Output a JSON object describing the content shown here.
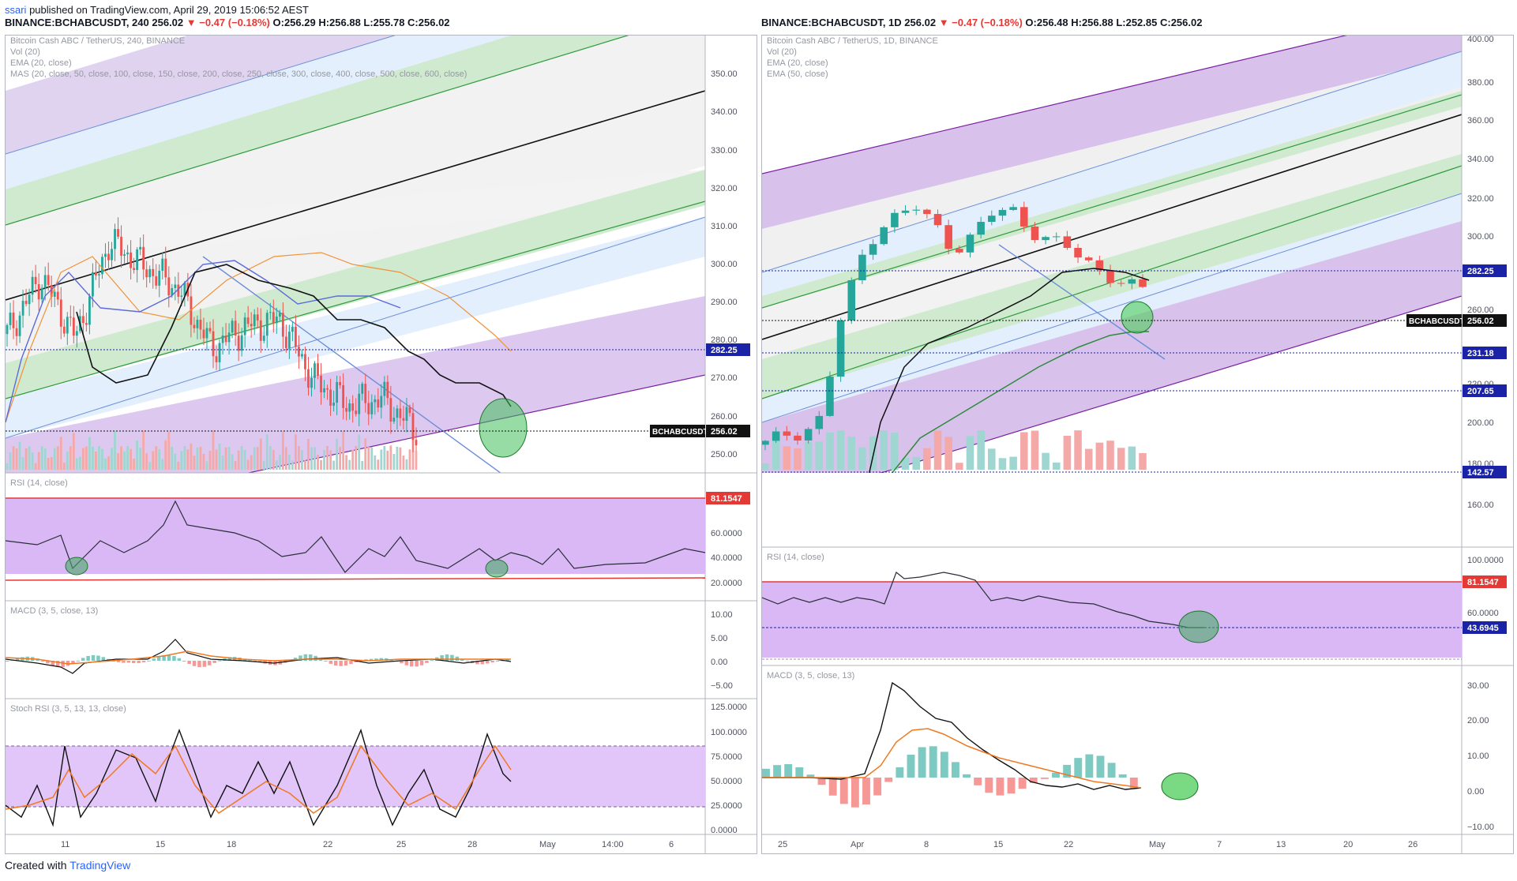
{
  "publish": {
    "user": "ssari",
    "text": "published on TradingView.com, April 29, 2019 15:06:52 AEST"
  },
  "left": {
    "header": {
      "symbol": "BINANCE:BCHABCUSDT, 240",
      "price": "256.02",
      "change": "▼ −0.47 (−0.18%)",
      "ohlc": "O:256.29 H:256.88 L:255.78 C:256.02"
    },
    "legend": {
      "line1": "Bitcoin Cash ABC / TetherUS, 240, BINANCE",
      "line2": "Vol (20)",
      "line3": "EMA (20, close)",
      "line4": "MAS (20, close, 50, close, 100, close, 150, close, 200, close, 250, close, 300, close, 400, close, 500, close, 600, close)"
    },
    "price_axis": [
      "350.00",
      "340.00",
      "330.00",
      "320.00",
      "310.00",
      "300.00",
      "290.00",
      "280.00",
      "270.00",
      "260.00",
      "250.00"
    ],
    "price_tags": {
      "level": "282.25",
      "symbol": "BCHABCUSDT",
      "last": "256.02"
    },
    "rsi": {
      "label": "RSI (14, close)",
      "tag": "81.1547",
      "axis": [
        "60.0000",
        "40.0000",
        "20.0000"
      ]
    },
    "macd": {
      "label": "MACD (3, 5, close, 13)",
      "axis": [
        "10.00",
        "5.00",
        "0.00",
        "−5.00"
      ]
    },
    "stoch": {
      "label": "Stoch RSI (3, 5, 13, 13, close)",
      "axis": [
        "125.0000",
        "100.0000",
        "75.0000",
        "50.0000",
        "25.0000",
        "0.0000"
      ]
    },
    "time_axis": [
      "11",
      "15",
      "18",
      "22",
      "25",
      "28",
      "May",
      "14:00",
      "6"
    ]
  },
  "right": {
    "header": {
      "symbol": "BINANCE:BCHABCUSDT, 1D",
      "price": "256.02",
      "change": "▼ −0.47 (−0.18%)",
      "ohlc": "O:256.48 H:256.88 L:252.85 C:256.02"
    },
    "legend": {
      "line1": "Bitcoin Cash ABC / TetherUS, 1D, BINANCE",
      "line2": "Vol (20)",
      "line3": "EMA (20, close)",
      "line4": "EMA (50, close)"
    },
    "price_axis": [
      "400.00",
      "380.00",
      "360.00",
      "340.00",
      "320.00",
      "300.00",
      "260.00",
      "220.00",
      "200.00",
      "180.00",
      "160.00"
    ],
    "price_tags": {
      "level1": "282.25",
      "symbol": "BCHABCUSDT",
      "last": "256.02",
      "level2": "231.18",
      "level3": "207.65",
      "level4": "142.57"
    },
    "rsi": {
      "label": "RSI (14, close)",
      "tag1": "81.1547",
      "tag2": "43.6945",
      "axis": [
        "100.0000",
        "60.0000"
      ]
    },
    "macd": {
      "label": "MACD (3, 5, close, 13)",
      "axis": [
        "30.00",
        "20.00",
        "10.00",
        "0.00",
        "−10.00"
      ]
    },
    "time_axis": [
      "25",
      "Apr",
      "8",
      "15",
      "22",
      "May",
      "7",
      "13",
      "20",
      "26"
    ]
  },
  "footer": {
    "text": "Created with",
    "brand": "TradingView"
  },
  "chart_data": [
    {
      "type": "candlestick",
      "title": "Bitcoin Cash ABC / TetherUS, 240, BINANCE",
      "ylim": [
        245,
        360
      ],
      "x": [
        "11",
        "15",
        "18",
        "22",
        "25",
        "28"
      ],
      "close_approx": [
        283,
        299,
        282,
        309,
        302,
        296,
        279,
        285,
        287,
        270,
        263,
        265,
        256.02
      ],
      "last": 256.02
    },
    {
      "type": "candlestick",
      "title": "Bitcoin Cash ABC / TetherUS, 1D, BINANCE",
      "ylim": [
        142,
        405
      ],
      "x": [
        "25",
        "Apr",
        "8",
        "15",
        "22"
      ],
      "close_approx": [
        158,
        165,
        166,
        176,
        237,
        276,
        298,
        305,
        309,
        299,
        283,
        292,
        305,
        310,
        296,
        290,
        283,
        276,
        268,
        262,
        256.02
      ],
      "last": 256.02
    }
  ]
}
